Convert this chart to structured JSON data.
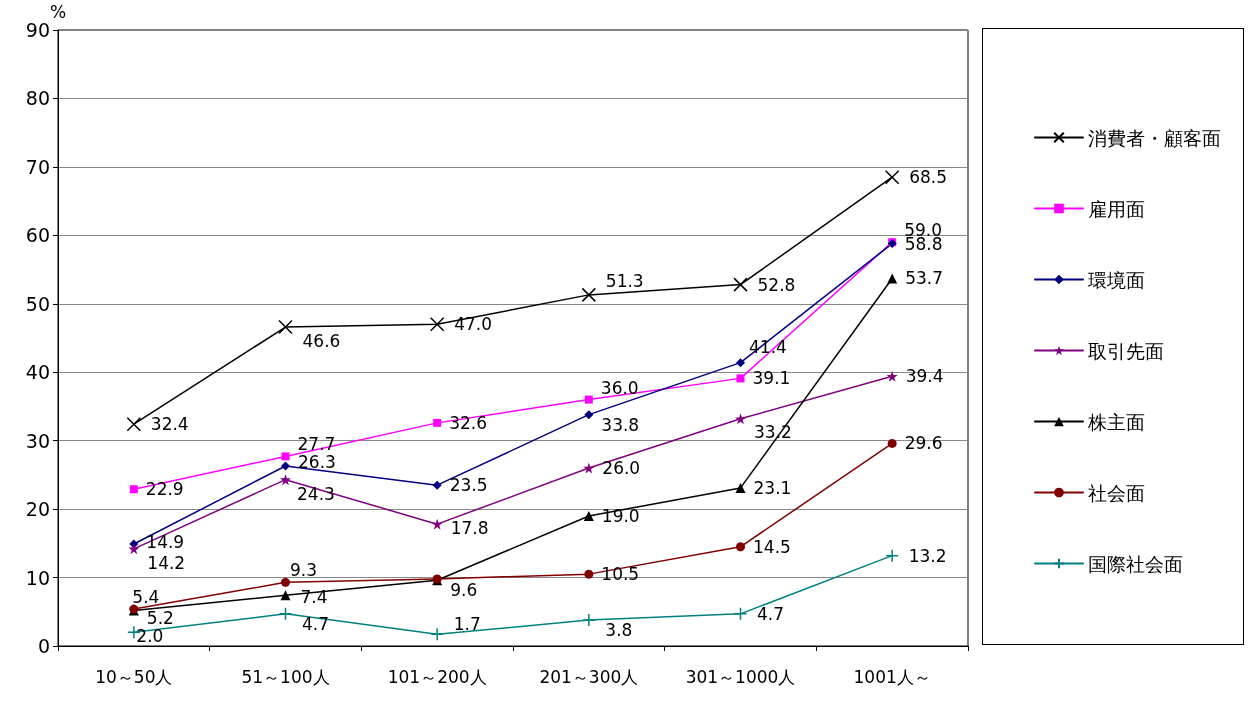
{
  "chart_data": {
    "type": "line",
    "ylabel": "%",
    "categories": [
      "10～50人",
      "51～100人",
      "101～200人",
      "201～300人",
      "301～1000人",
      "1001人～"
    ],
    "ylim": [
      0,
      90
    ],
    "yticks": [
      0,
      10,
      20,
      30,
      40,
      50,
      60,
      70,
      80,
      90
    ],
    "grid": "y",
    "legend": "right",
    "series": [
      {
        "name": "消費者・顧客面",
        "color": "#000000",
        "marker": "cross",
        "values": [
          32.4,
          46.6,
          47.0,
          51.3,
          52.8,
          68.5
        ],
        "value_labels": [
          "32.4",
          "46.6",
          "47.0",
          "51.3",
          "52.8",
          "68.5"
        ]
      },
      {
        "name": "雇用面",
        "color": "#ff00ff",
        "marker": "square",
        "values": [
          22.9,
          27.7,
          32.6,
          36.0,
          39.1,
          59.0
        ],
        "value_labels": [
          "22.9",
          "27.7",
          "32.6",
          "36.0",
          "39.1",
          "59.0"
        ]
      },
      {
        "name": "環境面",
        "color": "#000080",
        "marker": "diamond",
        "values": [
          14.9,
          26.3,
          23.5,
          33.8,
          41.4,
          58.8
        ],
        "value_labels": [
          "14.9",
          "26.3",
          "23.5",
          "33.8",
          "41.4",
          "58.8"
        ]
      },
      {
        "name": "取引先面",
        "color": "#800080",
        "marker": "star",
        "values": [
          14.2,
          24.3,
          17.8,
          26.0,
          33.2,
          39.4
        ],
        "value_labels": [
          "14.2",
          "24.3",
          "17.8",
          "26.0",
          "33.2",
          "39.4"
        ]
      },
      {
        "name": "株主面",
        "color": "#000000",
        "marker": "triangle",
        "values": [
          5.2,
          7.4,
          9.6,
          19.0,
          23.1,
          53.7
        ],
        "value_labels": [
          "5.2",
          "7.4",
          "9.6",
          "19.0",
          "23.1",
          "53.7"
        ]
      },
      {
        "name": "社会面",
        "color": "#800000",
        "marker": "circle",
        "values": [
          5.4,
          9.3,
          9.8,
          10.5,
          14.5,
          29.6
        ],
        "value_labels": [
          "5.4",
          "9.3",
          null,
          "10.5",
          "14.5",
          "29.6"
        ]
      },
      {
        "name": "国際社会面",
        "color": "#008080",
        "marker": "plus",
        "values": [
          2.0,
          4.7,
          1.7,
          3.8,
          4.7,
          13.2
        ],
        "value_labels": [
          "2.0",
          "4.7",
          "1.7",
          "3.8",
          "4.7",
          "13.2"
        ]
      }
    ]
  }
}
